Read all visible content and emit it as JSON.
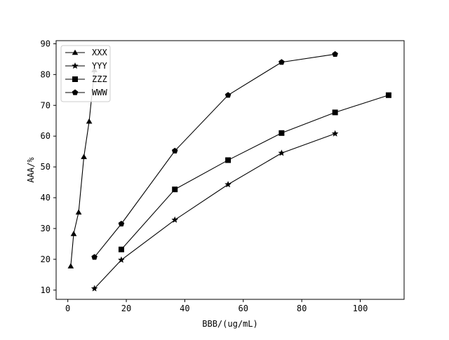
{
  "chart_data": {
    "type": "line",
    "title": "",
    "xlabel": "BBB/(ug/mL)",
    "ylabel": "AAA/%",
    "xlim": [
      -4,
      115
    ],
    "ylim": [
      7,
      91
    ],
    "xticks": [
      0,
      20,
      40,
      60,
      80,
      100
    ],
    "yticks": [
      10,
      20,
      30,
      40,
      50,
      60,
      70,
      80,
      90
    ],
    "grid": false,
    "legend_position": "top-left",
    "colors": {
      "line": "#000000",
      "marker": "#000000",
      "background": "#ffffff"
    },
    "series": [
      {
        "name": "XXX",
        "marker": "triangle",
        "x": [
          1,
          2,
          3.7,
          5.5,
          7.3,
          9.1
        ],
        "y": [
          17.8,
          28.3,
          35.3,
          53.3,
          64.8,
          81.5
        ]
      },
      {
        "name": "YYY",
        "marker": "star",
        "x": [
          9.1,
          18.3,
          36.6,
          54.8,
          73.1,
          91.4
        ],
        "y": [
          10.5,
          19.8,
          32.8,
          44.3,
          54.5,
          60.8
        ]
      },
      {
        "name": "ZZZ",
        "marker": "square",
        "x": [
          18.3,
          36.6,
          54.8,
          73.1,
          91.4,
          109.7
        ],
        "y": [
          23.2,
          42.7,
          52.2,
          61.0,
          67.7,
          73.3
        ]
      },
      {
        "name": "WWW",
        "marker": "pentagon",
        "x": [
          9.1,
          18.3,
          36.6,
          54.8,
          73.1,
          91.4
        ],
        "y": [
          20.7,
          31.5,
          55.2,
          73.3,
          84.0,
          86.6
        ]
      }
    ]
  }
}
